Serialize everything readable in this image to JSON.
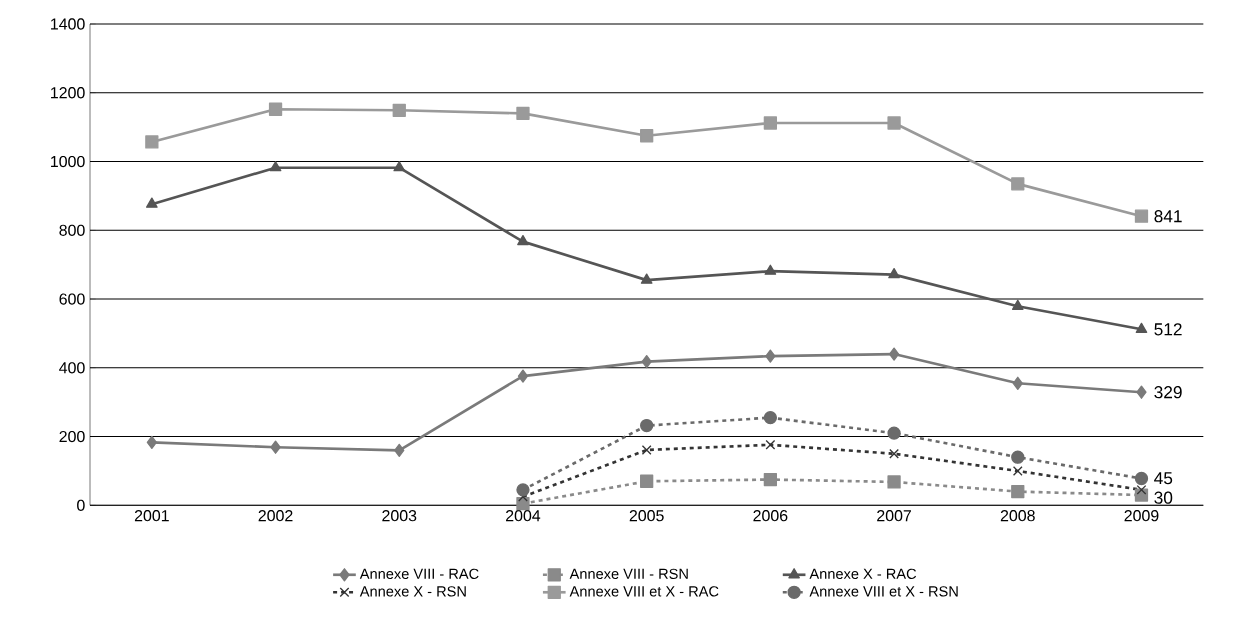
{
  "chart_data": {
    "type": "line",
    "categories": [
      "2001",
      "2002",
      "2003",
      "2004",
      "2005",
      "2006",
      "2007",
      "2008",
      "2009"
    ],
    "ylim": [
      0,
      1400
    ],
    "yticks": [
      0,
      200,
      400,
      600,
      800,
      1000,
      1200,
      1400
    ],
    "grid": "y",
    "legend": "bottom",
    "series": [
      {
        "name": "Annexe VIII - RAC",
        "color": "#7a7a7a",
        "marker": "diamond",
        "line_style": "solid",
        "values": [
          183,
          169,
          160,
          376,
          418,
          434,
          440,
          355,
          329
        ],
        "value_labels": [
          null,
          null,
          null,
          null,
          null,
          null,
          null,
          null,
          "329"
        ]
      },
      {
        "name": "Annexe VIII - RSN",
        "color": "#8a8a8a",
        "marker": "square",
        "line_style": "dashed",
        "values": [
          null,
          null,
          null,
          5,
          70,
          75,
          68,
          40,
          30
        ],
        "value_labels": [
          null,
          null,
          null,
          null,
          null,
          null,
          null,
          null,
          "30"
        ]
      },
      {
        "name": "Annexe X - RAC",
        "color": "#555555",
        "marker": "triangle",
        "line_style": "solid",
        "values": [
          876,
          982,
          982,
          767,
          655,
          681,
          671,
          579,
          512
        ],
        "value_labels": [
          null,
          null,
          null,
          null,
          null,
          null,
          null,
          null,
          "512"
        ]
      },
      {
        "name": "Annexe X - RSN",
        "color": "#333333",
        "marker": "cross",
        "line_style": "dashed",
        "values": [
          null,
          null,
          null,
          25,
          161,
          176,
          150,
          100,
          45
        ],
        "value_labels": [
          null,
          null,
          null,
          null,
          null,
          null,
          null,
          null,
          "45"
        ]
      },
      {
        "name": "Annexe VIII et X - RAC",
        "color": "#9a9a9a",
        "marker": "square",
        "line_style": "solid",
        "values": [
          1057,
          1152,
          1149,
          1140,
          1075,
          1112,
          1112,
          935,
          841
        ],
        "value_labels": [
          null,
          null,
          null,
          null,
          null,
          null,
          null,
          null,
          "841"
        ]
      },
      {
        "name": "Annexe VIII et X - RSN",
        "color": "#6a6a6a",
        "marker": "circle",
        "line_style": "dashed",
        "values": [
          null,
          null,
          null,
          45,
          232,
          255,
          210,
          140,
          78
        ]
      }
    ]
  }
}
